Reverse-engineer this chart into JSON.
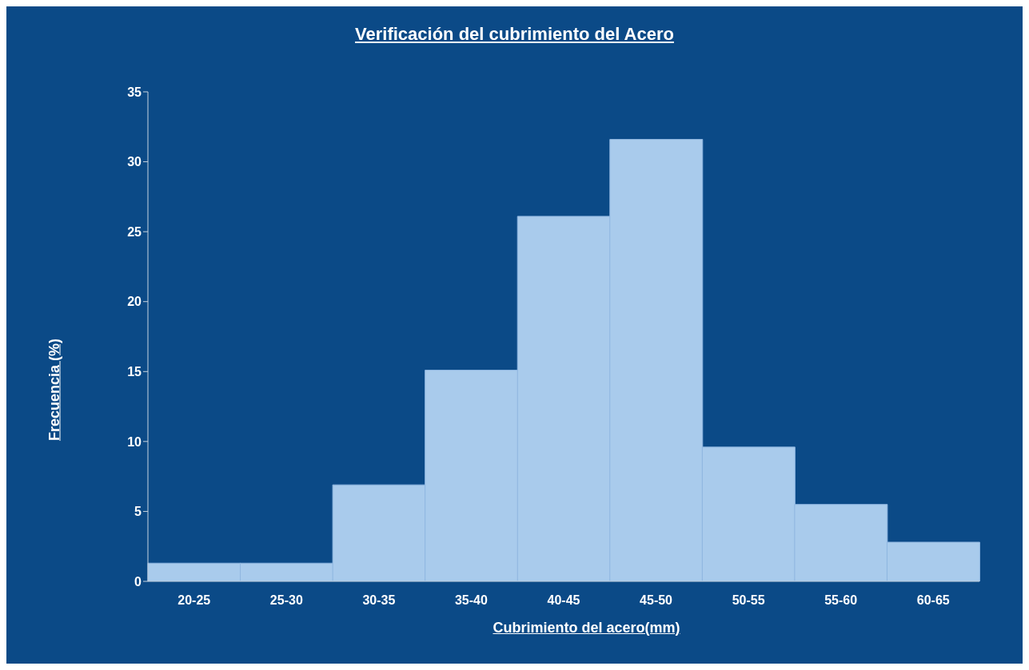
{
  "chart_data": {
    "type": "bar",
    "title": "Verificación del cubrimiento del Acero",
    "xlabel": "Cubrimiento del acero(mm)",
    "ylabel": "Frecuencia (%)",
    "categories": [
      "20-25",
      "25-30",
      "30-35",
      "35-40",
      "40-45",
      "45-50",
      "50-55",
      "55-60",
      "60-65"
    ],
    "values": [
      1.3,
      1.3,
      6.9,
      15.1,
      26.1,
      31.6,
      9.6,
      5.5,
      2.8
    ],
    "color": "#a9cbec",
    "ylim": [
      0,
      35
    ],
    "yticks": [
      0,
      5,
      10,
      15,
      20,
      25,
      30,
      35
    ],
    "grid": false,
    "legend": false
  }
}
